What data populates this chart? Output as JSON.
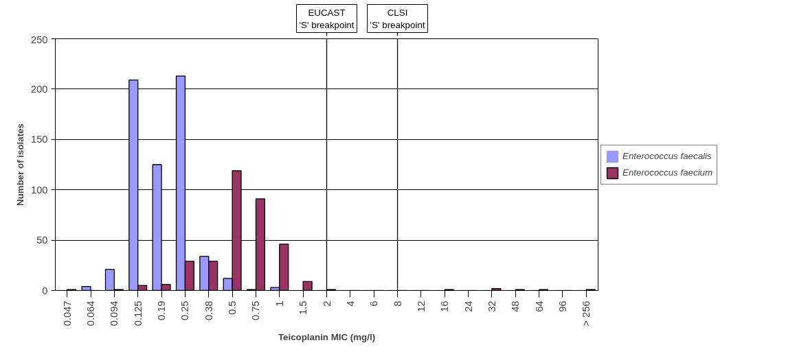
{
  "chart_data": {
    "type": "bar",
    "xlabel": "Teicoplanin MIC (mg/l)",
    "ylabel": "Number of isolates",
    "categories": [
      "0.047",
      "0.064",
      "0.094",
      "0.125",
      "0.19",
      "0.25",
      "0.38",
      "0.5",
      "0.75",
      "1",
      "1.5",
      "2",
      "4",
      "6",
      "8",
      "12",
      "16",
      "24",
      "32",
      "48",
      "64",
      "96",
      "> 256"
    ],
    "series": [
      {
        "name": "Enterococcus faecalis",
        "color": "#9999ff",
        "values": [
          0,
          4,
          21,
          209,
          125,
          213,
          34,
          12,
          1,
          3,
          0,
          0,
          0,
          0,
          0,
          0,
          0,
          0,
          0,
          0,
          0,
          0,
          0
        ]
      },
      {
        "name": "Enterococcus faecium",
        "color": "#993366",
        "values": [
          1,
          0,
          1,
          5,
          6,
          29,
          29,
          119,
          91,
          46,
          9,
          1,
          0,
          0,
          0,
          0,
          1,
          0,
          2,
          1,
          1,
          0,
          1
        ]
      }
    ],
    "ylim": [
      0,
      250
    ],
    "yticks": [
      0,
      50,
      100,
      150,
      200,
      250
    ],
    "grid": "y",
    "legend": "right",
    "ref_lines": [
      {
        "axis": "x",
        "value": "2",
        "label": "EUCAST\n'S' breakpoint",
        "color": "#000000"
      },
      {
        "axis": "x",
        "value": "8",
        "label": "CLSI\n'S' breakpoint",
        "color": "#000000"
      }
    ]
  }
}
